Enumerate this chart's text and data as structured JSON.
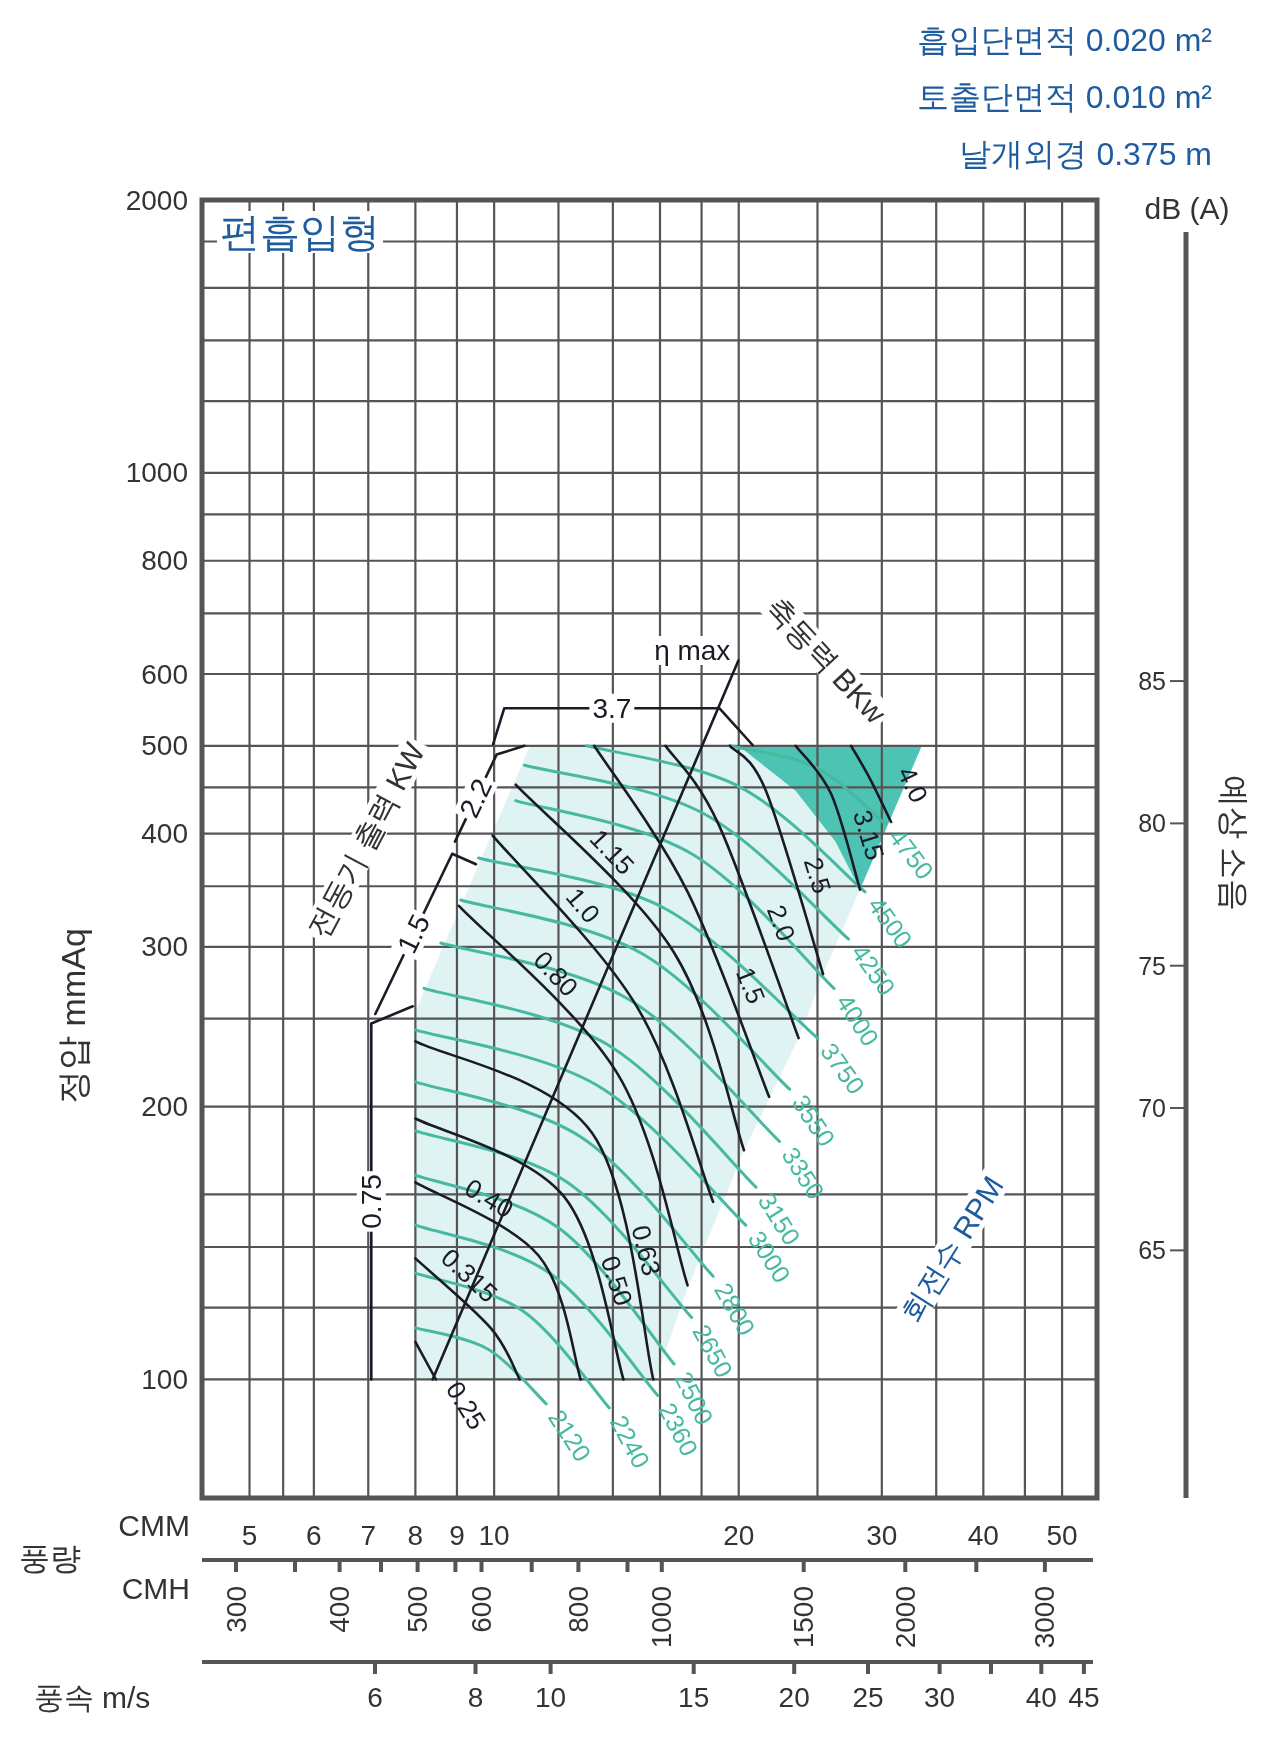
{
  "chart_data": [
    {
      "type": "line",
      "subtitle": "편흡입형",
      "xlabel": "CMM",
      "ylabel": "정압 mmAq",
      "y2label": "예상 소음",
      "log": "xy",
      "grid": true,
      "xlim": [
        4.37,
        55.2
      ],
      "xticks": [
        5,
        {
          "value": 5.5,
          "label": null
        },
        6,
        7,
        8,
        9,
        10,
        {
          "value": 12,
          "label": null
        },
        {
          "value": 14,
          "label": null
        },
        {
          "value": 16,
          "label": null
        },
        {
          "value": 18,
          "label": null
        },
        20,
        {
          "value": 25,
          "label": null
        },
        30,
        {
          "value": 35,
          "label": null
        },
        40,
        {
          "value": 45,
          "label": null
        },
        50
      ],
      "ylim": [
        74,
        2000
      ],
      "yticks": [
        100,
        {
          "value": 120,
          "label": null
        },
        {
          "value": 140,
          "label": null
        },
        {
          "value": 160,
          "label": null
        },
        200,
        {
          "value": 250,
          "label": null
        },
        300,
        {
          "value": 350,
          "label": null
        },
        400,
        {
          "value": 450,
          "label": null
        },
        500,
        600,
        {
          "value": 700,
          "label": null
        },
        800,
        {
          "value": 900,
          "label": null
        },
        1000,
        {
          "value": 1200,
          "label": null
        },
        {
          "value": 1400,
          "label": null
        },
        {
          "value": 1600,
          "label": null
        },
        {
          "value": 1800,
          "label": null
        },
        2000
      ],
      "y2lim": [
        56.3,
        101.9
      ],
      "y2ticks": [
        65,
        70,
        75,
        80,
        85
      ],
      "annotations": [
        "흡입단면적 0.020 m²",
        "토출단면적 0.010 m²",
        "날개외경 0.375 m",
        "dB (A)",
        "풍량",
        "전동기 출력 KW",
        "축동력 BKw",
        "회전수 RPM"
      ],
      "series": [
        {
          "color": "#e0f3f3",
          "x": [
            8.0,
            11.07,
            15.8,
            17.3,
            20.3,
            23.7,
            25.4,
            28.2,
            33.6
          ],
          "values": [
            null,
            null,
            null,
            null,
            null,
            null,
            null,
            null,
            null
          ],
          "lower": [
            100,
            100,
            100,
            126,
            179,
            238,
            280,
            347,
            500
          ],
          "upper": [
            255,
            500,
            500,
            500,
            500,
            500,
            500,
            500,
            500
          ]
        },
        {
          "color": "#4cc3b3",
          "x": [
            20.0,
            23.5,
            26.3,
            28.2,
            33.6
          ],
          "values": [
            null,
            null,
            null,
            null,
            null
          ],
          "lower": [
            500,
            446,
            392,
            347,
            500
          ],
          "upper": [
            500,
            500,
            500,
            500,
            500
          ]
        },
        {
          "name": "2120",
          "color": "#46b9a0",
          "x": [
            8.0,
            9.83,
            11.59
          ],
          "values": [
            114,
            108,
            94
          ]
        },
        {
          "name": "2240",
          "color": "#46b9a0",
          "x": [
            8.0,
            10.85,
            13.86
          ],
          "values": [
            131,
            119,
            93
          ]
        },
        {
          "name": "2360",
          "color": "#46b9a0",
          "x": [
            8.0,
            11.7,
            15.9
          ],
          "values": [
            148,
            131,
            96
          ]
        },
        {
          "name": "2500",
          "color": "#46b9a0",
          "x": [
            8.0,
            12.0,
            16.65
          ],
          "values": [
            168,
            147,
            104
          ]
        },
        {
          "name": "2650",
          "color": "#46b9a0",
          "x": [
            8.0,
            12.3,
            17.5
          ],
          "values": [
            188,
            165,
            117
          ]
        },
        {
          "name": "2800",
          "color": "#46b9a0",
          "x": [
            8.0,
            12.8,
            18.6
          ],
          "values": [
            213,
            185,
            130
          ]
        },
        {
          "name": "3000",
          "color": "#46b9a0",
          "x": [
            8.0,
            13.4,
            20.4
          ],
          "values": [
            243,
            211,
            148
          ]
        },
        {
          "name": "3150",
          "color": "#46b9a0",
          "x": [
            8.2,
            13.8,
            21.0
          ],
          "values": [
            270,
            234,
            163
          ]
        },
        {
          "name": "3350",
          "color": "#46b9a0",
          "x": [
            8.6,
            14.6,
            22.45
          ],
          "values": [
            303,
            263,
            183
          ]
        },
        {
          "name": "3550",
          "color": "#46b9a0",
          "x": [
            9.1,
            15.2,
            23.1
          ],
          "values": [
            338,
            295,
            209
          ]
        },
        {
          "name": "3750",
          "color": "#46b9a0",
          "x": [
            9.57,
            16.2,
            25.0
          ],
          "values": [
            376,
            331,
            238
          ]
        },
        {
          "name": "4000",
          "color": "#46b9a0",
          "x": [
            10.63,
            17.5,
            26.2
          ],
          "values": [
            435,
            380,
            270
          ]
        },
        {
          "name": "4250",
          "color": "#46b9a0",
          "x": [
            10.9,
            18.1,
            27.3
          ],
          "values": [
            476,
            421,
            306
          ]
        },
        {
          "name": "4500",
          "color": "#46b9a0",
          "x": [
            13.0,
            20.1,
            28.6
          ],
          "values": [
            500,
            450,
            345
          ]
        },
        {
          "name": "4750",
          "color": "#46b9a0",
          "x": [
            19.5,
            24.9,
            30.3
          ],
          "values": [
            500,
            473,
            410
          ]
        },
        {
          "name": "0.25",
          "color": "#1b1b27",
          "x": [
            8.0,
            8.48
          ],
          "values": [
            110,
            100
          ]
        },
        {
          "name": "0.315",
          "color": "#1b1b27",
          "x": [
            8.0,
            9.9,
            10.75
          ],
          "values": [
            136,
            114,
            100
          ]
        },
        {
          "name": "0.40",
          "color": "#1b1b27",
          "x": [
            8.0,
            11.34,
            12.78
          ],
          "values": [
            165,
            137,
            100
          ]
        },
        {
          "name": "0.50",
          "color": "#1b1b27",
          "x": [
            8.0,
            12.2,
            14.43
          ],
          "values": [
            194,
            159,
            100
          ]
        },
        {
          "name": "0.63",
          "color": "#1b1b27",
          "x": [
            8.0,
            13.2,
            15.7
          ],
          "values": [
            236,
            187,
            100
          ]
        },
        {
          "name": "0.80",
          "color": "#1b1b27",
          "x": [
            9.05,
            14.2,
            17.3
          ],
          "values": [
            333,
            217,
            127
          ]
        },
        {
          "name": "1.0",
          "color": "#1b1b27",
          "x": [
            9.96,
            14.98,
            18.6
          ],
          "values": [
            398,
            258,
            157
          ]
        },
        {
          "name": "1.15",
          "color": "#1b1b27",
          "x": [
            10.63,
            16.64,
            20.3
          ],
          "values": [
            453,
            296,
            179
          ]
        },
        {
          "name": "1.5",
          "color": "#1b1b27",
          "x": [
            13.28,
            17.3,
            21.8
          ],
          "values": [
            500,
            345,
            205
          ]
        },
        {
          "name": "2.0",
          "color": "#1b1b27",
          "x": [
            16.25,
            18.9,
            23.7
          ],
          "values": [
            500,
            409,
            238
          ]
        },
        {
          "name": "2.5",
          "color": "#1b1b27",
          "x": [
            19.5,
            21.6,
            25.4
          ],
          "values": [
            500,
            446,
            280
          ]
        },
        {
          "name": "3.15",
          "color": "#1b1b27",
          "x": [
            23.5,
            26.0,
            28.2
          ],
          "values": [
            500,
            442,
            347
          ]
        },
        {
          "name": "4.0",
          "color": "#1b1b27",
          "x": [
            27.5,
            29.0,
            30.8
          ],
          "values": [
            500,
            460,
            412
          ]
        },
        {
          "name": "0.75",
          "color": "#1b1b27",
          "x": [
            7.06,
            7.06,
            7.94
          ],
          "values": [
            100,
            247,
            258
          ]
        },
        {
          "name": "1.5",
          "color": "#1b1b27",
          "x": [
            7.14,
            8.88,
            9.5
          ],
          "values": [
            253,
            380,
            370
          ]
        },
        {
          "name": "2.2",
          "color": "#1b1b27",
          "x": [
            8.95,
            10.07,
            10.9
          ],
          "values": [
            392,
            489,
            500
          ]
        },
        {
          "name": "3.7",
          "color": "#1b1b27",
          "x": [
            9.97,
            10.29,
            18.94,
            20.8
          ],
          "values": [
            502,
            550,
            550,
            501
          ]
        },
        {
          "name": "η max",
          "color": "#1b1b27",
          "x": [
            8.4,
            19.98
          ],
          "values": [
            100,
            621
          ]
        }
      ]
    },
    {
      "type": "other",
      "annotations": [
        "CMH",
        "300",
        "400",
        "500",
        "600",
        "800",
        "1000",
        "1500",
        "2000",
        "3000"
      ]
    },
    {
      "type": "other",
      "annotations": [
        "풍속 m/s",
        "6",
        "8",
        "10",
        "15",
        "20",
        "25",
        "30",
        "40",
        "45"
      ]
    }
  ]
}
